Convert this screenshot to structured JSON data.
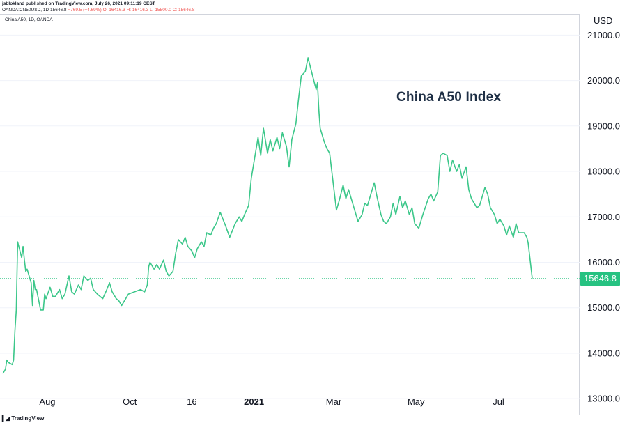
{
  "header": {
    "published": "jsblokland published on TradingView.com, July 26, 2021 09:11:19 CEST",
    "symbol_line_prefix": "OANDA:CN50USD, 1D",
    "last": "15646.8",
    "change": "−769.5 (−4.69%)",
    "ohlc": "O: 16416.3 H: 16416.3 L: 15500.0 C: 15646.8"
  },
  "symbol_label": "China A50, 1D, OANDA",
  "annotation": "China A50 Index",
  "currency": "USD",
  "footer": {
    "logo_text": "TradingView"
  },
  "colors": {
    "line": "#3cc78a",
    "price_tag": "#26c281",
    "text": "#131722"
  },
  "price_tag": "15646.8",
  "chart_data": {
    "type": "line",
    "title": "China A50 Index",
    "ylabel": "USD",
    "ylim": [
      12650,
      21450
    ],
    "y_ticks": [
      "21000.0",
      "20000.0",
      "19000.0",
      "18000.0",
      "17000.0",
      "16000.0",
      "15000.0",
      "14000.0",
      "13000.0"
    ],
    "x_ticks": [
      {
        "label": "Aug",
        "date": "2020-08-01",
        "bold": false
      },
      {
        "label": "Oct",
        "date": "2020-10-01",
        "bold": false
      },
      {
        "label": "16",
        "date": "2020-11-16",
        "bold": false
      },
      {
        "label": "2021",
        "date": "2021-01-01",
        "bold": true
      },
      {
        "label": "Mar",
        "date": "2021-03-01",
        "bold": false
      },
      {
        "label": "May",
        "date": "2021-05-01",
        "bold": false
      },
      {
        "label": "Jul",
        "date": "2021-07-01",
        "bold": false
      }
    ],
    "grid": "horizontal",
    "series": [
      {
        "points": [
          [
            "2020-06-29",
            13550
          ],
          [
            "2020-07-01",
            13650
          ],
          [
            "2020-07-02",
            13850
          ],
          [
            "2020-07-03",
            13800
          ],
          [
            "2020-07-06",
            13750
          ],
          [
            "2020-07-07",
            13850
          ],
          [
            "2020-07-08",
            14500
          ],
          [
            "2020-07-09",
            14950
          ],
          [
            "2020-07-10",
            16450
          ],
          [
            "2020-07-13",
            16100
          ],
          [
            "2020-07-14",
            16350
          ],
          [
            "2020-07-15",
            16050
          ],
          [
            "2020-07-16",
            15800
          ],
          [
            "2020-07-17",
            15850
          ],
          [
            "2020-07-20",
            15550
          ],
          [
            "2020-07-21",
            15050
          ],
          [
            "2020-07-22",
            15600
          ],
          [
            "2020-07-23",
            15400
          ],
          [
            "2020-07-24",
            15400
          ],
          [
            "2020-07-27",
            14950
          ],
          [
            "2020-07-29",
            14950
          ],
          [
            "2020-07-30",
            15300
          ],
          [
            "2020-07-31",
            15200
          ],
          [
            "2020-08-03",
            15450
          ],
          [
            "2020-08-05",
            15250
          ],
          [
            "2020-08-07",
            15250
          ],
          [
            "2020-08-10",
            15400
          ],
          [
            "2020-08-12",
            15200
          ],
          [
            "2020-08-14",
            15300
          ],
          [
            "2020-08-17",
            15700
          ],
          [
            "2020-08-19",
            15350
          ],
          [
            "2020-08-21",
            15300
          ],
          [
            "2020-08-24",
            15500
          ],
          [
            "2020-08-26",
            15400
          ],
          [
            "2020-08-28",
            15700
          ],
          [
            "2020-08-31",
            15600
          ],
          [
            "2020-09-02",
            15650
          ],
          [
            "2020-09-04",
            15400
          ],
          [
            "2020-09-07",
            15300
          ],
          [
            "2020-09-09",
            15250
          ],
          [
            "2020-09-11",
            15200
          ],
          [
            "2020-09-14",
            15400
          ],
          [
            "2020-09-16",
            15550
          ],
          [
            "2020-09-18",
            15350
          ],
          [
            "2020-09-21",
            15200
          ],
          [
            "2020-09-23",
            15150
          ],
          [
            "2020-09-25",
            15050
          ],
          [
            "2020-09-28",
            15200
          ],
          [
            "2020-09-30",
            15300
          ],
          [
            "2020-10-09",
            15400
          ],
          [
            "2020-10-12",
            15350
          ],
          [
            "2020-10-14",
            15500
          ],
          [
            "2020-10-15",
            15900
          ],
          [
            "2020-10-16",
            16000
          ],
          [
            "2020-10-19",
            15850
          ],
          [
            "2020-10-21",
            15950
          ],
          [
            "2020-10-23",
            15850
          ],
          [
            "2020-10-26",
            16050
          ],
          [
            "2020-10-28",
            15800
          ],
          [
            "2020-10-30",
            15700
          ],
          [
            "2020-11-02",
            15800
          ],
          [
            "2020-11-04",
            16200
          ],
          [
            "2020-11-06",
            16500
          ],
          [
            "2020-11-09",
            16400
          ],
          [
            "2020-11-11",
            16550
          ],
          [
            "2020-11-13",
            16350
          ],
          [
            "2020-11-16",
            16250
          ],
          [
            "2020-11-18",
            16100
          ],
          [
            "2020-11-20",
            16300
          ],
          [
            "2020-11-23",
            16450
          ],
          [
            "2020-11-25",
            16350
          ],
          [
            "2020-11-27",
            16650
          ],
          [
            "2020-11-30",
            16600
          ],
          [
            "2020-12-02",
            16750
          ],
          [
            "2020-12-04",
            16850
          ],
          [
            "2020-12-07",
            17100
          ],
          [
            "2020-12-09",
            16950
          ],
          [
            "2020-12-11",
            16800
          ],
          [
            "2020-12-14",
            16550
          ],
          [
            "2020-12-16",
            16700
          ],
          [
            "2020-12-18",
            16850
          ],
          [
            "2020-12-21",
            17000
          ],
          [
            "2020-12-23",
            16900
          ],
          [
            "2020-12-25",
            17050
          ],
          [
            "2020-12-28",
            17250
          ],
          [
            "2020-12-30",
            17850
          ],
          [
            "2021-01-04",
            18750
          ],
          [
            "2021-01-06",
            18350
          ],
          [
            "2021-01-08",
            18950
          ],
          [
            "2021-01-11",
            18400
          ],
          [
            "2021-01-13",
            18700
          ],
          [
            "2021-01-15",
            18450
          ],
          [
            "2021-01-18",
            18750
          ],
          [
            "2021-01-20",
            18500
          ],
          [
            "2021-01-22",
            18850
          ],
          [
            "2021-01-25",
            18550
          ],
          [
            "2021-01-27",
            18100
          ],
          [
            "2021-01-29",
            18700
          ],
          [
            "2021-02-01",
            19050
          ],
          [
            "2021-02-03",
            19600
          ],
          [
            "2021-02-05",
            20100
          ],
          [
            "2021-02-08",
            20200
          ],
          [
            "2021-02-10",
            20500
          ],
          [
            "2021-02-16",
            19800
          ],
          [
            "2021-02-17",
            19950
          ],
          [
            "2021-02-18",
            19350
          ],
          [
            "2021-02-19",
            18950
          ],
          [
            "2021-02-22",
            18650
          ],
          [
            "2021-02-24",
            18500
          ],
          [
            "2021-02-26",
            18400
          ],
          [
            "2021-03-01",
            17650
          ],
          [
            "2021-03-03",
            17150
          ],
          [
            "2021-03-05",
            17350
          ],
          [
            "2021-03-08",
            17700
          ],
          [
            "2021-03-10",
            17400
          ],
          [
            "2021-03-12",
            17600
          ],
          [
            "2021-03-15",
            17300
          ],
          [
            "2021-03-17",
            17100
          ],
          [
            "2021-03-19",
            16900
          ],
          [
            "2021-03-22",
            17050
          ],
          [
            "2021-03-24",
            17300
          ],
          [
            "2021-03-26",
            17250
          ],
          [
            "2021-03-29",
            17550
          ],
          [
            "2021-03-31",
            17750
          ],
          [
            "2021-04-02",
            17450
          ],
          [
            "2021-04-05",
            17050
          ],
          [
            "2021-04-07",
            16900
          ],
          [
            "2021-04-09",
            16850
          ],
          [
            "2021-04-12",
            17000
          ],
          [
            "2021-04-14",
            17300
          ],
          [
            "2021-04-16",
            17050
          ],
          [
            "2021-04-19",
            17450
          ],
          [
            "2021-04-21",
            17200
          ],
          [
            "2021-04-23",
            17350
          ],
          [
            "2021-04-26",
            17050
          ],
          [
            "2021-04-28",
            17200
          ],
          [
            "2021-04-30",
            16850
          ],
          [
            "2021-05-03",
            16750
          ],
          [
            "2021-05-06",
            17050
          ],
          [
            "2021-05-10",
            17400
          ],
          [
            "2021-05-12",
            17500
          ],
          [
            "2021-05-14",
            17350
          ],
          [
            "2021-05-17",
            17550
          ],
          [
            "2021-05-19",
            18350
          ],
          [
            "2021-05-21",
            18400
          ],
          [
            "2021-05-24",
            18350
          ],
          [
            "2021-05-26",
            18000
          ],
          [
            "2021-05-28",
            18250
          ],
          [
            "2021-05-31",
            18000
          ],
          [
            "2021-06-02",
            18150
          ],
          [
            "2021-06-04",
            17850
          ],
          [
            "2021-06-07",
            18100
          ],
          [
            "2021-06-09",
            17600
          ],
          [
            "2021-06-11",
            17400
          ],
          [
            "2021-06-15",
            17200
          ],
          [
            "2021-06-17",
            17250
          ],
          [
            "2021-06-21",
            17650
          ],
          [
            "2021-06-23",
            17500
          ],
          [
            "2021-06-25",
            17200
          ],
          [
            "2021-06-28",
            17050
          ],
          [
            "2021-06-30",
            16850
          ],
          [
            "2021-07-02",
            16950
          ],
          [
            "2021-07-05",
            16800
          ],
          [
            "2021-07-07",
            16600
          ],
          [
            "2021-07-09",
            16800
          ],
          [
            "2021-07-12",
            16550
          ],
          [
            "2021-07-14",
            16850
          ],
          [
            "2021-07-16",
            16650
          ],
          [
            "2021-07-20",
            16650
          ],
          [
            "2021-07-22",
            16550
          ],
          [
            "2021-07-23",
            16416.3
          ],
          [
            "2021-07-26",
            15646.8
          ]
        ]
      }
    ],
    "last_value": 15646.8
  }
}
